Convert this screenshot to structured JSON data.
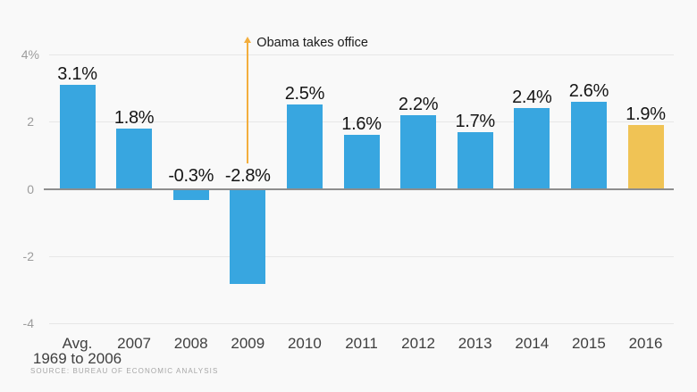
{
  "colors": {
    "bar": "#38a6e0",
    "highlight_bar": "#f0c355",
    "annotation": "#f3ae3d",
    "grid": "#e7e7e7",
    "zero_line": "#8e8e8e",
    "background": "#f9f9f9"
  },
  "chart_data": {
    "type": "bar",
    "title": "",
    "xlabel": "",
    "ylabel": "",
    "categories": [
      [
        "Avg.",
        "1969 to 2006"
      ],
      [
        "2007"
      ],
      [
        "2008"
      ],
      [
        "2009"
      ],
      [
        "2010"
      ],
      [
        "2011"
      ],
      [
        "2012"
      ],
      [
        "2013"
      ],
      [
        "2014"
      ],
      [
        "2015"
      ],
      [
        "2016"
      ]
    ],
    "values": [
      3.1,
      1.8,
      -0.3,
      -2.8,
      2.5,
      1.6,
      2.2,
      1.7,
      2.4,
      2.6,
      1.9
    ],
    "value_labels": [
      "3.1%",
      "1.8%",
      "-0.3%",
      "-2.8%",
      "2.5%",
      "1.6%",
      "2.2%",
      "1.7%",
      "2.4%",
      "2.6%",
      "1.9%"
    ],
    "highlight_index": 10,
    "y_ticks": [
      {
        "label": "4%",
        "value": 4
      },
      {
        "label": "2",
        "value": 2
      },
      {
        "label": "0",
        "value": 0
      },
      {
        "label": "-2",
        "value": -2
      },
      {
        "label": "-4",
        "value": -4
      }
    ],
    "ylim": [
      -4,
      4
    ],
    "grid": true,
    "legend": false,
    "annotation": {
      "text": "Obama takes office",
      "category_index": 3
    },
    "source": "SOURCE: BUREAU OF ECONOMIC ANALYSIS"
  }
}
